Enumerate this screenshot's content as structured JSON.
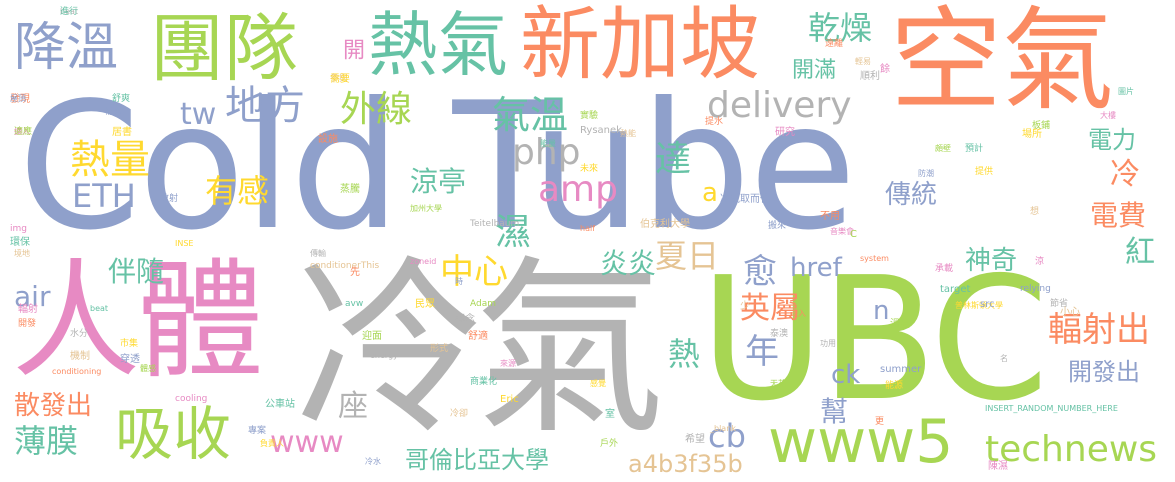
{
  "words": {
    "cold_tube": "Cold Tube",
    "ubc": "UBC",
    "cold_air": "冷氣",
    "human_body": "人體",
    "air": "空氣",
    "singapore": "新加坡",
    "team": "團隊",
    "hot_air": "熱氣",
    "cooling": "降溫",
    "www5": "www5",
    "technews": "technews",
    "absorb": "吸收",
    "radiate_out": "輻射出",
    "place": "地方",
    "infrared": "外線",
    "delivery": "delivery",
    "php": "php",
    "amp": "amp",
    "heat_amount": "熱量",
    "eth": "ETH",
    "feel": "有感",
    "tw": "tw",
    "temperature": "氣溫",
    "dry": "乾燥",
    "reach": "達",
    "wet": "濕",
    "pavilion": "涼亭",
    "center": "中心",
    "summer": "夏日",
    "hot_hot": "炎炎",
    "more": "愈",
    "british": "英屬",
    "year": "年",
    "hot": "熱",
    "href": "href",
    "n": "n",
    "ck": "ck",
    "cb": "cb",
    "www": "www",
    "membrane": "薄膜",
    "emit": "散發出",
    "accompany": "伴隨",
    "air_en": "air",
    "seat": "座",
    "columbia": "哥倫比亞大學",
    "a4b3f35b": "a4b3f35b",
    "traditional": "傳統",
    "cold": "冷",
    "power": "電力",
    "electric_fee": "電費",
    "magic": "神奇",
    "red": "紅",
    "develop_out": "開發出",
    "open": "開",
    "full_open": "開滿",
    "a": "a",
    "help": "幫"
  },
  "small_words": [
    "heat",
    "參與",
    "發現",
    "擴入",
    "舒爽",
    "居書",
    "補充",
    "實驗",
    "Rysanek",
    "熱能",
    "提水",
    "研究",
    "能量",
    "未來",
    "冷氣取而代",
    "加州大學",
    "Teitelbaum",
    "伯克利大學",
    "half",
    "img",
    "環保",
    "INSE",
    "散射",
    "蒸騰",
    "傳輸",
    "conditionerThis",
    "先",
    "zoneid",
    "avw",
    "民眾",
    "時",
    "Adam",
    "概念",
    "境地",
    "開發",
    "輻射",
    "beat",
    "市集",
    "穿透",
    "體感",
    "水分",
    "機制",
    "conditioning",
    "cooling",
    "公車站",
    "負責人",
    "專案",
    "迎面",
    "energy",
    "形式",
    "舒適",
    "來源",
    "商業化",
    "Eric",
    "冷水",
    "戶外",
    "希望",
    "_blank",
    "更",
    "陳濕",
    "INSERT_RANDOM_NUMBER_HERE",
    "能源",
    "summer",
    "天花",
    "節省",
    "小心",
    "system",
    "承載",
    "target",
    "普林斯頓大學",
    "relying",
    "溫度",
    "功用",
    "想",
    "不用",
    "音樂會",
    "預計",
    "場所",
    "防潮",
    "板鋪",
    "順利",
    "輕易",
    "遠離",
    "餘",
    "圖片",
    "提供",
    "src",
    "頗壁",
    "泰澳",
    "少",
    "走入",
    "涼",
    "室",
    "感覺",
    "搬來",
    "C",
    "名",
    "冷卻",
    "設施",
    "大樓",
    "進行",
    "需要",
    "屋頂",
    "適應"
  ],
  "colors": {
    "blue": "#8fa0cb",
    "orange": "#fb8b62",
    "green": "#a7d653",
    "pink": "#e78ac3",
    "gray": "#b3b3b3",
    "teal": "#66c2a5",
    "yellow": "#ffd92f",
    "tan": "#e5c494"
  }
}
